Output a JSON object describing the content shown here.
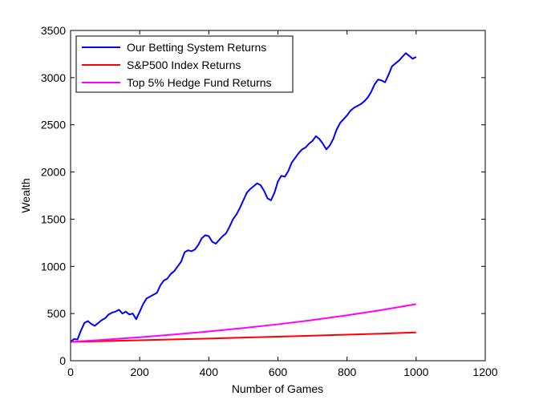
{
  "chart_data": {
    "type": "line",
    "title": "",
    "xlabel": "Number of Games",
    "ylabel": "Wealth",
    "xlim": [
      0,
      1200
    ],
    "ylim": [
      0,
      3500
    ],
    "xticks": [
      0,
      200,
      400,
      600,
      800,
      1000,
      1200
    ],
    "yticks": [
      0,
      500,
      1000,
      1500,
      2000,
      2500,
      3000,
      3500
    ],
    "grid": false,
    "legend_position": "top-left",
    "series": [
      {
        "name": "Our Betting System Returns",
        "color": "#0000ff",
        "x": [
          0,
          10,
          20,
          30,
          40,
          50,
          60,
          70,
          80,
          90,
          100,
          110,
          120,
          130,
          140,
          150,
          160,
          170,
          180,
          190,
          200,
          210,
          220,
          230,
          240,
          250,
          260,
          270,
          280,
          290,
          300,
          310,
          320,
          330,
          340,
          350,
          360,
          370,
          380,
          390,
          400,
          410,
          420,
          430,
          440,
          450,
          460,
          470,
          480,
          490,
          500,
          510,
          520,
          530,
          540,
          550,
          560,
          570,
          580,
          590,
          600,
          610,
          620,
          630,
          640,
          650,
          660,
          670,
          680,
          690,
          700,
          710,
          720,
          730,
          740,
          750,
          760,
          770,
          780,
          790,
          800,
          810,
          820,
          830,
          840,
          850,
          860,
          870,
          880,
          890,
          900,
          910,
          920,
          930,
          940,
          950,
          960,
          970,
          980,
          990,
          1000
        ],
        "y": [
          200,
          230,
          225,
          320,
          400,
          420,
          390,
          370,
          400,
          430,
          450,
          490,
          510,
          520,
          540,
          500,
          520,
          490,
          500,
          440,
          520,
          600,
          660,
          680,
          700,
          720,
          800,
          850,
          870,
          920,
          950,
          1000,
          1050,
          1150,
          1170,
          1160,
          1180,
          1230,
          1300,
          1330,
          1320,
          1260,
          1240,
          1280,
          1320,
          1350,
          1420,
          1500,
          1550,
          1620,
          1700,
          1780,
          1820,
          1850,
          1880,
          1860,
          1800,
          1720,
          1700,
          1780,
          1900,
          1960,
          1950,
          2010,
          2100,
          2150,
          2200,
          2240,
          2260,
          2300,
          2330,
          2380,
          2350,
          2300,
          2240,
          2280,
          2350,
          2450,
          2520,
          2560,
          2600,
          2650,
          2680,
          2700,
          2720,
          2750,
          2790,
          2850,
          2930,
          2980,
          2970,
          2950,
          3030,
          3120,
          3150,
          3180,
          3220,
          3260,
          3230,
          3200,
          3220
        ]
      },
      {
        "name": "S&P500 Index Returns",
        "color": "#ff0000",
        "x": [
          0,
          100,
          200,
          300,
          400,
          500,
          600,
          700,
          800,
          900,
          1000
        ],
        "y": [
          200,
          208,
          217,
          226,
          235,
          245,
          255,
          265,
          276,
          287,
          300
        ]
      },
      {
        "name": "Top 5% Hedge Fund Returns",
        "color": "#ff00ff",
        "x": [
          0,
          100,
          200,
          300,
          400,
          500,
          600,
          700,
          800,
          900,
          1000
        ],
        "y": [
          200,
          223,
          249,
          278,
          310,
          346,
          386,
          431,
          481,
          537,
          600
        ]
      }
    ]
  }
}
